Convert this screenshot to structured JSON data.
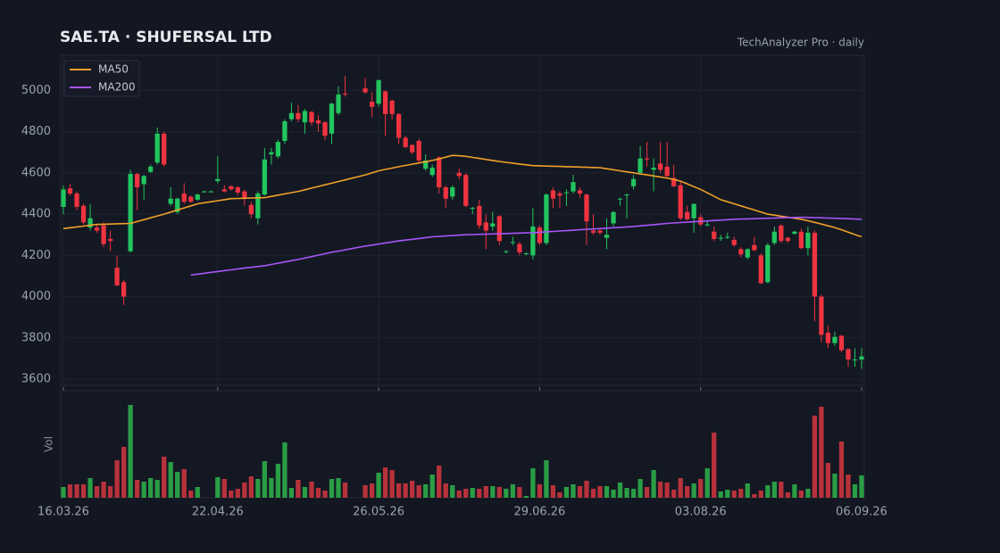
{
  "chart_data": {
    "type": "candlestick",
    "title": "SAE.TA  ·  SHUFERSAL LTD",
    "subtitle": "TechAnalyzer Pro · daily",
    "volume_label": "Vol",
    "categories": [
      "16.03.26",
      null,
      null,
      null,
      null,
      null,
      null,
      null,
      null,
      null,
      null,
      null,
      null,
      null,
      null,
      null,
      null,
      null,
      null,
      null,
      null,
      null,
      null,
      "22.04.26",
      null,
      null,
      null,
      null,
      null,
      null,
      null,
      null,
      null,
      null,
      null,
      null,
      null,
      null,
      null,
      null,
      null,
      null,
      null,
      null,
      null,
      null,
      null,
      "26.05.26",
      null,
      null,
      null,
      null,
      null,
      null,
      null,
      null,
      null,
      null,
      null,
      null,
      null,
      null,
      null,
      null,
      null,
      null,
      null,
      null,
      null,
      null,
      null,
      "29.06.26",
      null,
      null,
      null,
      null,
      null,
      null,
      null,
      null,
      null,
      null,
      null,
      null,
      null,
      null,
      null,
      null,
      null,
      null,
      null,
      null,
      null,
      null,
      null,
      "03.08.26",
      null,
      null,
      null,
      null,
      null,
      null,
      null,
      null,
      null,
      null,
      null,
      null,
      null,
      null,
      null,
      null,
      null,
      null,
      null,
      null,
      null,
      null,
      null,
      "06.09.26"
    ],
    "open": [
      4435,
      4525,
      4500,
      4440,
      4335,
      4335,
      4345,
      4280,
      4140,
      4070,
      4220,
      4595,
      4545,
      4605,
      4650,
      4790,
      4450,
      4410,
      4500,
      4485,
      4470,
      4510,
      4510,
      4560,
      4520,
      4535,
      4530,
      4510,
      4445,
      4380,
      4495,
      4690,
      4680,
      4755,
      4860,
      4890,
      4845,
      4895,
      4855,
      4845,
      4790,
      4890,
      4985,
      null,
      null,
      5010,
      4945,
      4935,
      4995,
      4950,
      4885,
      4770,
      4735,
      4755,
      4620,
      4590,
      4675,
      4530,
      4485,
      4600,
      4590,
      4430,
      4440,
      4360,
      4340,
      4390,
      4220,
      4265,
      4255,
      4210,
      4200,
      4335,
      4260,
      4515,
      4500,
      4505,
      4510,
      4515,
      4495,
      4320,
      4320,
      4285,
      4355,
      4475,
      4495,
      4535,
      4600,
      4670,
      4615,
      4645,
      4630,
      4575,
      4540,
      4410,
      4380,
      4385,
      4350,
      4315,
      4285,
      4290,
      4275,
      4230,
      4190,
      4250,
      4200,
      4070,
      4260,
      4345,
      4285,
      4305,
      4315,
      4235,
      4310,
      4000,
      3825,
      3775,
      3810,
      3745,
      3695,
      3695
    ],
    "high": [
      4540,
      4545,
      4510,
      4450,
      4450,
      4350,
      4360,
      4320,
      4200,
      4080,
      4615,
      4600,
      4590,
      4640,
      4820,
      4800,
      4530,
      4480,
      4550,
      4490,
      4500,
      4515,
      4515,
      4680,
      4540,
      4540,
      4535,
      4520,
      4460,
      4510,
      4720,
      4720,
      4760,
      4860,
      4940,
      4930,
      4910,
      4900,
      4880,
      4850,
      4940,
      5020,
      5070,
      null,
      null,
      5060,
      4990,
      5050,
      5000,
      4955,
      4890,
      4780,
      4740,
      4765,
      4690,
      4640,
      4680,
      4540,
      4540,
      4620,
      4600,
      4435,
      4470,
      4400,
      4410,
      4395,
      4225,
      4290,
      4265,
      4215,
      4430,
      4345,
      4500,
      4530,
      4510,
      4520,
      4590,
      4530,
      4500,
      4400,
      4330,
      4380,
      4415,
      4480,
      4500,
      4590,
      4730,
      4750,
      4670,
      4750,
      4750,
      4640,
      4560,
      4440,
      4450,
      4400,
      4370,
      4340,
      4300,
      4310,
      4290,
      4240,
      4235,
      4290,
      4210,
      4260,
      4340,
      4350,
      4290,
      4320,
      4330,
      4340,
      4320,
      4010,
      3860,
      3830,
      3815,
      3750,
      3750,
      3750
    ],
    "low": [
      4400,
      4490,
      4420,
      4350,
      4320,
      4310,
      4240,
      4220,
      4050,
      3960,
      4215,
      4420,
      4470,
      4600,
      4640,
      4630,
      4440,
      4400,
      4450,
      4455,
      4465,
      4505,
      4505,
      4550,
      4505,
      4515,
      4490,
      4440,
      4380,
      4350,
      4490,
      4640,
      4670,
      4740,
      4850,
      4845,
      4790,
      4830,
      4800,
      4760,
      4740,
      4880,
      4970,
      null,
      null,
      4985,
      4870,
      4920,
      4780,
      4860,
      4740,
      4720,
      4690,
      4650,
      4610,
      4580,
      4500,
      4430,
      4470,
      4570,
      4435,
      4400,
      4330,
      4230,
      4320,
      4250,
      4210,
      4250,
      4200,
      4200,
      4180,
      4250,
      4250,
      4430,
      4430,
      4440,
      4500,
      4480,
      4250,
      4300,
      4300,
      4230,
      4340,
      4440,
      4380,
      4520,
      4590,
      4630,
      4510,
      4600,
      4580,
      4530,
      4370,
      4370,
      4310,
      4340,
      4340,
      4270,
      4270,
      4280,
      4240,
      4190,
      4180,
      4220,
      4060,
      4065,
      4250,
      4260,
      4260,
      4300,
      4230,
      4200,
      3880,
      3780,
      3750,
      3760,
      3730,
      3660,
      3660,
      3650
    ],
    "close": [
      4520,
      4500,
      4435,
      4360,
      4380,
      4320,
      4255,
      4270,
      4055,
      4000,
      4595,
      4530,
      4585,
      4630,
      4790,
      4640,
      4475,
      4475,
      4460,
      4460,
      4495,
      4510,
      4510,
      4570,
      4510,
      4520,
      4505,
      4475,
      4400,
      4500,
      4665,
      4700,
      4750,
      4850,
      4890,
      4860,
      4900,
      4845,
      4840,
      4780,
      4935,
      4980,
      4980,
      null,
      null,
      4990,
      4920,
      5050,
      4885,
      4885,
      4770,
      4725,
      4700,
      4660,
      4660,
      4625,
      4530,
      4475,
      4530,
      4585,
      4440,
      4430,
      4345,
      4320,
      4355,
      4270,
      4220,
      4265,
      4215,
      4210,
      4340,
      4260,
      4495,
      4475,
      4490,
      4505,
      4555,
      4500,
      4365,
      4310,
      4310,
      4300,
      4410,
      4475,
      4495,
      4570,
      4670,
      4665,
      4625,
      4615,
      4585,
      4535,
      4380,
      4375,
      4450,
      4350,
      4350,
      4280,
      4285,
      4290,
      4250,
      4205,
      4230,
      4225,
      4065,
      4250,
      4315,
      4270,
      4270,
      4315,
      4235,
      4310,
      4000,
      3815,
      3775,
      3805,
      3740,
      3695,
      3695,
      3710
    ],
    "volume": [
      12,
      15,
      15,
      15,
      22,
      13,
      18,
      13,
      42,
      57,
      104,
      20,
      18,
      22,
      20,
      46,
      40,
      29,
      32,
      8,
      12,
      0,
      0,
      23,
      21,
      8,
      10,
      17,
      24,
      21,
      41,
      22,
      38,
      62,
      11,
      20,
      12,
      18,
      11,
      8,
      21,
      22,
      17,
      null,
      null,
      14,
      16,
      28,
      34,
      31,
      16,
      16,
      19,
      14,
      15,
      26,
      36,
      16,
      14,
      8,
      10,
      11,
      10,
      13,
      13,
      12,
      10,
      15,
      12,
      2,
      33,
      15,
      42,
      14,
      6,
      12,
      15,
      13,
      19,
      10,
      13,
      13,
      9,
      17,
      11,
      10,
      21,
      12,
      31,
      18,
      17,
      9,
      22,
      13,
      16,
      21,
      33,
      73,
      7,
      9,
      8,
      10,
      16,
      4,
      8,
      14,
      18,
      18,
      6,
      15,
      8,
      10,
      92,
      102,
      39,
      27,
      63,
      26,
      15,
      25
    ],
    "series": [
      {
        "name": "MA50",
        "color": "#f0a029",
        "values": [
          4330,
          4334,
          4338,
          4342,
          4346,
          4350,
          4351,
          4352,
          4353,
          4354,
          4355,
          4364,
          4373,
          4382,
          4391,
          4400,
          4410,
          4420,
          4430,
          4440,
          4450,
          4455,
          4460,
          4465,
          4470,
          4475,
          4476,
          4477,
          4478,
          4479,
          4480,
          4486,
          4492,
          4498,
          4504,
          4510,
          4518,
          4526,
          4534,
          4542,
          4550,
          4558,
          4566,
          4574,
          4582,
          4590,
          4600,
          4610,
          4617,
          4623,
          4630,
          4636,
          4642,
          4648,
          4654,
          4660,
          4668,
          4676,
          4685,
          4683,
          4680,
          4675,
          4670,
          4665,
          4660,
          4655,
          4651,
          4647,
          4643,
          4639,
          4635,
          4634,
          4633,
          4632,
          4631,
          4630,
          4629,
          4628,
          4627,
          4626,
          4625,
          4620,
          4615,
          4610,
          4605,
          4600,
          4595,
          4590,
          4585,
          4580,
          4575,
          4568,
          4560,
          4547,
          4533,
          4520,
          4503,
          4487,
          4470,
          4460,
          4450,
          4440,
          4430,
          4420,
          4410,
          4400,
          4395,
          4390,
          4385,
          4380,
          4375,
          4368,
          4360,
          4352,
          4343,
          4335,
          4324,
          4313,
          4301,
          4290
        ]
      },
      {
        "name": "MA200",
        "color": "#a855f7",
        "values": [
          null,
          null,
          null,
          null,
          null,
          null,
          null,
          null,
          null,
          null,
          null,
          null,
          null,
          null,
          null,
          null,
          null,
          null,
          null,
          4105,
          4109,
          4113,
          4118,
          4122,
          4126,
          4130,
          4134,
          4138,
          4142,
          4146,
          4150,
          4156,
          4162,
          4168,
          4174,
          4180,
          4187,
          4194,
          4201,
          4208,
          4215,
          4221,
          4227,
          4233,
          4239,
          4245,
          4250,
          4255,
          4260,
          4265,
          4270,
          4274,
          4278,
          4282,
          4286,
          4290,
          4292,
          4294,
          4296,
          4298,
          4300,
          4301,
          4302,
          4303,
          4304,
          4305,
          4306,
          4307,
          4308,
          4309,
          4310,
          4312,
          4314,
          4316,
          4318,
          4320,
          4322,
          4324,
          4326,
          4328,
          4330,
          4332,
          4334,
          4336,
          4338,
          4340,
          4343,
          4346,
          4349,
          4352,
          4355,
          4357,
          4359,
          4361,
          4363,
          4365,
          4367,
          4369,
          4371,
          4373,
          4375,
          4376,
          4377,
          4378,
          4379,
          4380,
          4381,
          4382,
          4383,
          4384,
          4385,
          4384,
          4383,
          4382,
          4381,
          4380,
          4379,
          4378,
          4376,
          4375
        ]
      }
    ],
    "up_color": "#22c55e",
    "down_color": "#ef3340",
    "volume_up_color": "#2a9d45",
    "volume_down_color": "#b8323b",
    "ylim": [
      3570,
      5170
    ],
    "yticks": [
      3600,
      3800,
      4000,
      4200,
      4400,
      4600,
      4800,
      5000
    ],
    "vol_ylim": [
      0,
      110
    ],
    "grid": true,
    "legend": "upper left"
  }
}
